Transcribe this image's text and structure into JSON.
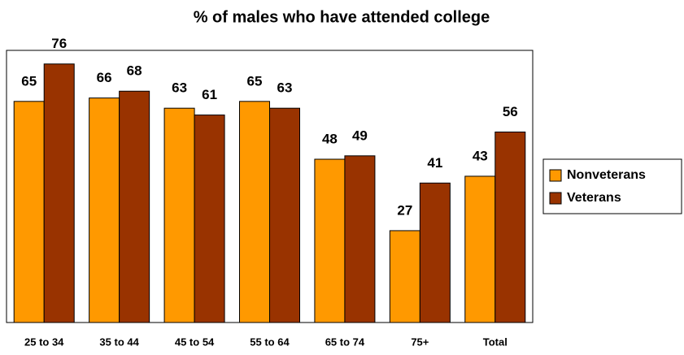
{
  "chart_data": {
    "type": "bar",
    "title": "% of males who have attended college",
    "categories": [
      "25 to 34",
      "35 to 44",
      "45 to 54",
      "55 to 64",
      "65 to 74",
      "75+",
      "Total"
    ],
    "series": [
      {
        "name": "Nonveterans",
        "color": "#ff9900",
        "values": [
          65,
          66,
          63,
          65,
          48,
          27,
          43
        ]
      },
      {
        "name": "Veterans",
        "color": "#993300",
        "values": [
          76,
          68,
          61,
          63,
          49,
          41,
          56
        ]
      }
    ],
    "ylim": [
      0,
      80
    ],
    "legend": "right"
  }
}
